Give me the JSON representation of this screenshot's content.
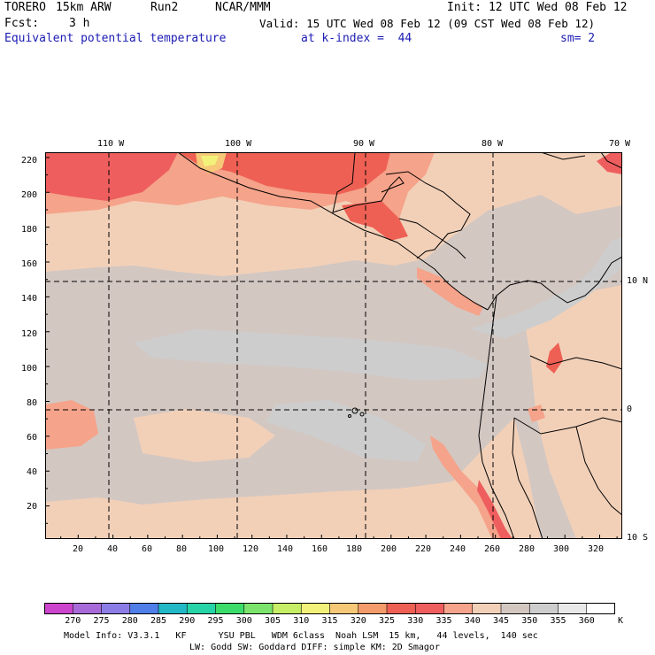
{
  "header": {
    "model": "TORERO",
    "resolution": "15km ARW",
    "run": "Run2",
    "org": "NCAR/MMM",
    "init": "Init: 12 UTC Wed 08 Feb 12",
    "fcst_label": "Fcst:",
    "fcst_value": "3 h",
    "valid": "Valid: 15 UTC Wed 08 Feb 12 (09 CST Wed 08 Feb 12)",
    "field": "Equivalent potential temperature",
    "level": "at k-index =  44",
    "smoothing": "sm= 2"
  },
  "map": {
    "top_lon_labels": [
      "110 W",
      "100 W",
      "90 W",
      "80 W",
      "70 W"
    ],
    "right_lat_labels": [
      "10 N",
      "0",
      "10 S"
    ],
    "left_grid_labels": [
      "220",
      "200",
      "180",
      "160",
      "140",
      "120",
      "100",
      "80",
      "60",
      "40",
      "20"
    ],
    "bottom_grid_labels": [
      "20",
      "40",
      "60",
      "80",
      "100",
      "120",
      "140",
      "160",
      "180",
      "200",
      "220",
      "240",
      "260",
      "280",
      "300",
      "320"
    ],
    "grid_x_range": [
      1,
      333
    ],
    "grid_y_range": [
      1,
      223
    ],
    "lon_lines": [
      -110,
      -100,
      -90,
      -80
    ],
    "lat_lines": [
      10,
      0
    ]
  },
  "colorbar": {
    "levels": [
      "270",
      "275",
      "280",
      "285",
      "290",
      "295",
      "300",
      "305",
      "310",
      "315",
      "320",
      "325",
      "330",
      "335",
      "340",
      "345",
      "350",
      "355",
      "360"
    ],
    "unit": "K",
    "colors": [
      "#cc44cc",
      "#a86ad8",
      "#8c7de6",
      "#4f7ee8",
      "#22b8c6",
      "#26d4a8",
      "#3cdc6a",
      "#7ce46c",
      "#c6ee66",
      "#f2f27a",
      "#f6c877",
      "#f39b6a",
      "#ee6054",
      "#ee5e5e",
      "#f5a38a",
      "#f2d0b8",
      "#d3c7c2",
      "#cdcdcd",
      "#e8e8e8",
      "#ffffff"
    ]
  },
  "footer": {
    "line1": "Model Info: V3.3.1   KF      YSU PBL   WDM 6class  Noah LSM  15 km,   44 levels,  140 sec",
    "line2": "LW: Godd SW: Goddard DIFF: simple KM: 2D Smagor"
  }
}
